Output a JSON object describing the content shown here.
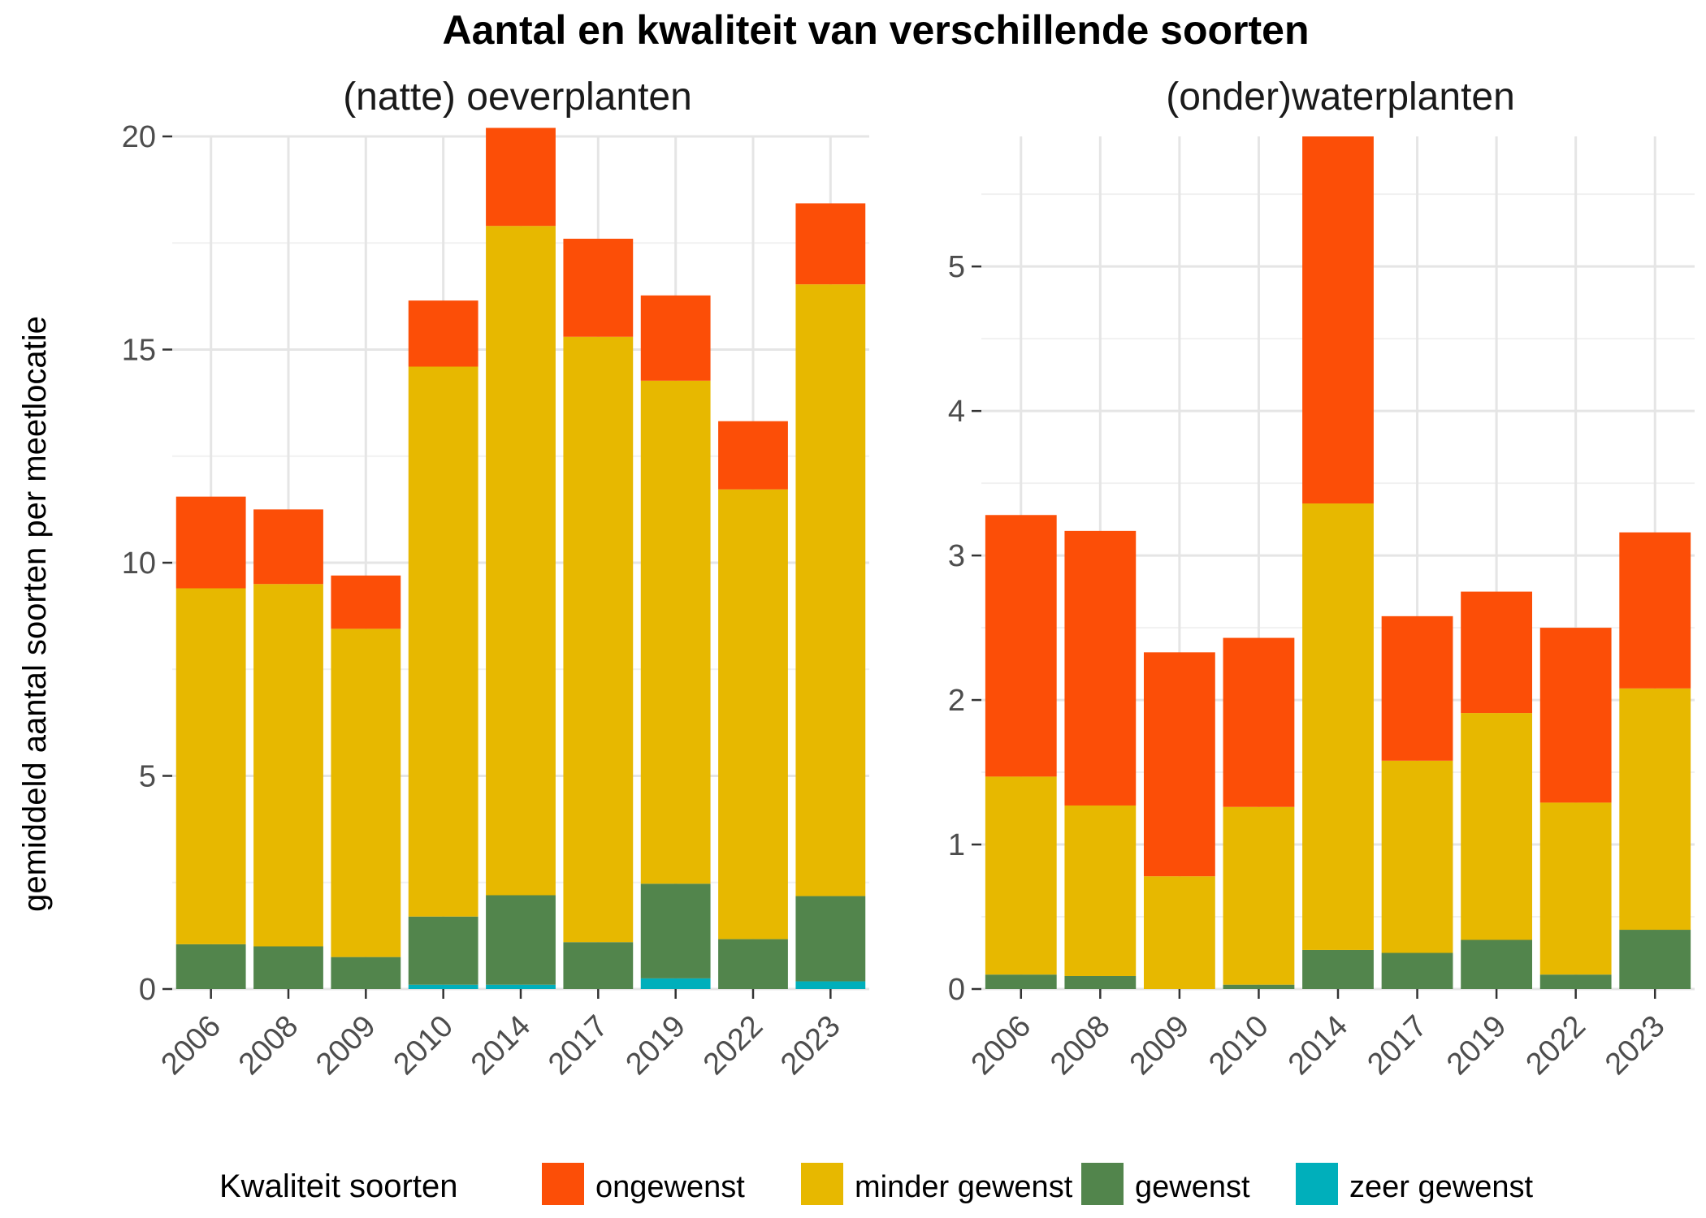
{
  "chart_data": {
    "type": "bar",
    "stacked": true,
    "title": "Aantal en kwaliteit van verschillende soorten",
    "ylabel": "gemiddeld aantal soorten per meetlocatie",
    "legend_title": "Kwaliteit soorten",
    "legend_position": "bottom",
    "grid": true,
    "categories": [
      "2006",
      "2008",
      "2009",
      "2010",
      "2014",
      "2017",
      "2019",
      "2022",
      "2023"
    ],
    "series_names": [
      "ongewenst",
      "minder gewenst",
      "gewenst",
      "zeer gewenst"
    ],
    "colors": {
      "ongewenst": "#FC4E07",
      "minder gewenst": "#E7B800",
      "gewenst": "#52854C",
      "zeer gewenst": "#00AFBB"
    },
    "panels": [
      {
        "subtitle": "(natte) oeverplanten",
        "ylim": [
          0,
          20
        ],
        "yticks": [
          0,
          5,
          10,
          15,
          20
        ],
        "series": [
          {
            "name": "zeer gewenst",
            "values": [
              0,
              0,
              0,
              0.1,
              0.1,
              0,
              0.25,
              0,
              0.18
            ]
          },
          {
            "name": "gewenst",
            "values": [
              1.05,
              1.0,
              0.75,
              1.6,
              2.1,
              1.1,
              2.22,
              1.17,
              2.0
            ]
          },
          {
            "name": "minder gewenst",
            "values": [
              8.35,
              8.5,
              7.7,
              12.9,
              15.7,
              14.2,
              11.8,
              10.55,
              14.35
            ]
          },
          {
            "name": "ongewenst",
            "values": [
              2.15,
              1.75,
              1.25,
              1.55,
              2.3,
              2.3,
              2.0,
              1.6,
              1.9
            ]
          }
        ]
      },
      {
        "subtitle": "(onder)waterplanten",
        "ylim": [
          0,
          5.9
        ],
        "yticks": [
          0,
          1,
          2,
          3,
          4,
          5
        ],
        "series": [
          {
            "name": "zeer gewenst",
            "values": [
              0,
              0,
              0,
              0,
              0,
              0,
              0,
              0,
              0
            ]
          },
          {
            "name": "gewenst",
            "values": [
              0.1,
              0.09,
              0,
              0.03,
              0.27,
              0.25,
              0.34,
              0.1,
              0.41
            ]
          },
          {
            "name": "minder gewenst",
            "values": [
              1.37,
              1.18,
              0.78,
              1.23,
              3.09,
              1.33,
              1.57,
              1.19,
              1.67
            ]
          },
          {
            "name": "ongewenst",
            "values": [
              1.81,
              1.9,
              1.55,
              1.17,
              2.54,
              1.0,
              0.84,
              1.21,
              1.08
            ]
          }
        ]
      }
    ]
  }
}
